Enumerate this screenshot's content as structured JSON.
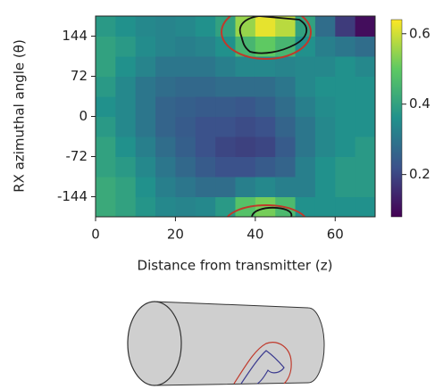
{
  "chart_data": {
    "type": "heatmap",
    "xlabel": "Distance from transmitter (z)",
    "ylabel": "RX azimuthal angle (θ)",
    "xbins": [
      0,
      5,
      10,
      15,
      20,
      25,
      30,
      35,
      40,
      45,
      50,
      55,
      60,
      65,
      70
    ],
    "ybins": [
      -180,
      -144,
      -108,
      -72,
      -36,
      0,
      36,
      72,
      108,
      144,
      180
    ],
    "z": [
      [
        0.42,
        0.4,
        0.37,
        0.34,
        0.33,
        0.34,
        0.38,
        0.48,
        0.52,
        0.46,
        0.36,
        0.36,
        0.36,
        0.36
      ],
      [
        0.42,
        0.4,
        0.36,
        0.32,
        0.3,
        0.28,
        0.28,
        0.32,
        0.34,
        0.32,
        0.32,
        0.36,
        0.38,
        0.38
      ],
      [
        0.4,
        0.38,
        0.34,
        0.3,
        0.27,
        0.24,
        0.22,
        0.22,
        0.24,
        0.26,
        0.32,
        0.36,
        0.38,
        0.38
      ],
      [
        0.4,
        0.36,
        0.32,
        0.28,
        0.25,
        0.22,
        0.2,
        0.19,
        0.2,
        0.24,
        0.3,
        0.34,
        0.36,
        0.38
      ],
      [
        0.38,
        0.34,
        0.3,
        0.26,
        0.24,
        0.22,
        0.22,
        0.21,
        0.22,
        0.26,
        0.3,
        0.34,
        0.36,
        0.36
      ],
      [
        0.36,
        0.34,
        0.3,
        0.26,
        0.25,
        0.24,
        0.24,
        0.23,
        0.25,
        0.28,
        0.32,
        0.35,
        0.36,
        0.36
      ],
      [
        0.38,
        0.34,
        0.3,
        0.28,
        0.27,
        0.27,
        0.28,
        0.28,
        0.28,
        0.3,
        0.34,
        0.36,
        0.36,
        0.36
      ],
      [
        0.4,
        0.36,
        0.33,
        0.3,
        0.3,
        0.3,
        0.32,
        0.34,
        0.34,
        0.33,
        0.34,
        0.34,
        0.36,
        0.34
      ],
      [
        0.4,
        0.38,
        0.35,
        0.33,
        0.32,
        0.33,
        0.36,
        0.45,
        0.5,
        0.45,
        0.36,
        0.32,
        0.3,
        0.28
      ],
      [
        0.38,
        0.36,
        0.34,
        0.33,
        0.34,
        0.36,
        0.4,
        0.55,
        0.62,
        0.58,
        0.4,
        0.28,
        0.18,
        0.1
      ]
    ],
    "xlim": [
      0,
      70
    ],
    "xticks": [
      0,
      20,
      40,
      60
    ],
    "ylim": [
      -180,
      180
    ],
    "yticks": [
      -144,
      -72,
      0,
      72,
      144
    ],
    "clim": [
      0.08,
      0.64
    ],
    "cticks": [
      0.2,
      0.4,
      0.6
    ],
    "colormap": "viridis"
  }
}
